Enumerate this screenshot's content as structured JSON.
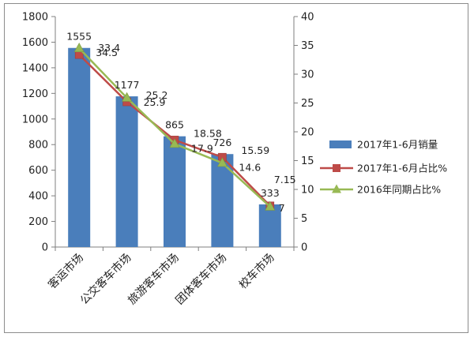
{
  "chart_data": {
    "type": "bar",
    "categories": [
      "客运市场",
      "公交客车市场",
      "旅游客车市场",
      "团体客车市场",
      "校车市场"
    ],
    "series": [
      {
        "name": "2017年1-6月销量",
        "kind": "bar",
        "axis": "left",
        "values": [
          1555,
          1177,
          865,
          726,
          333
        ],
        "color": "#4a7ebb"
      },
      {
        "name": "2017年1-6月占比%",
        "kind": "line",
        "axis": "right",
        "marker": "square",
        "values": [
          33.4,
          25.2,
          18.58,
          15.59,
          7.15
        ],
        "color": "#be4b48"
      },
      {
        "name": "2016年同期占比%",
        "kind": "line",
        "axis": "right",
        "marker": "triangle",
        "values": [
          34.5,
          25.9,
          17.9,
          14.6,
          7
        ],
        "color": "#98b954"
      }
    ],
    "ylim_left": [
      0,
      1800
    ],
    "ylim_right": [
      0,
      40
    ],
    "yticks_left": [
      "0",
      "200",
      "400",
      "600",
      "800",
      "1000",
      "1200",
      "1400",
      "1600",
      "1800"
    ],
    "yticks_right": [
      "0",
      "5",
      "10",
      "15",
      "20",
      "25",
      "30",
      "35",
      "40"
    ],
    "legend_position": "right",
    "grid": false
  }
}
